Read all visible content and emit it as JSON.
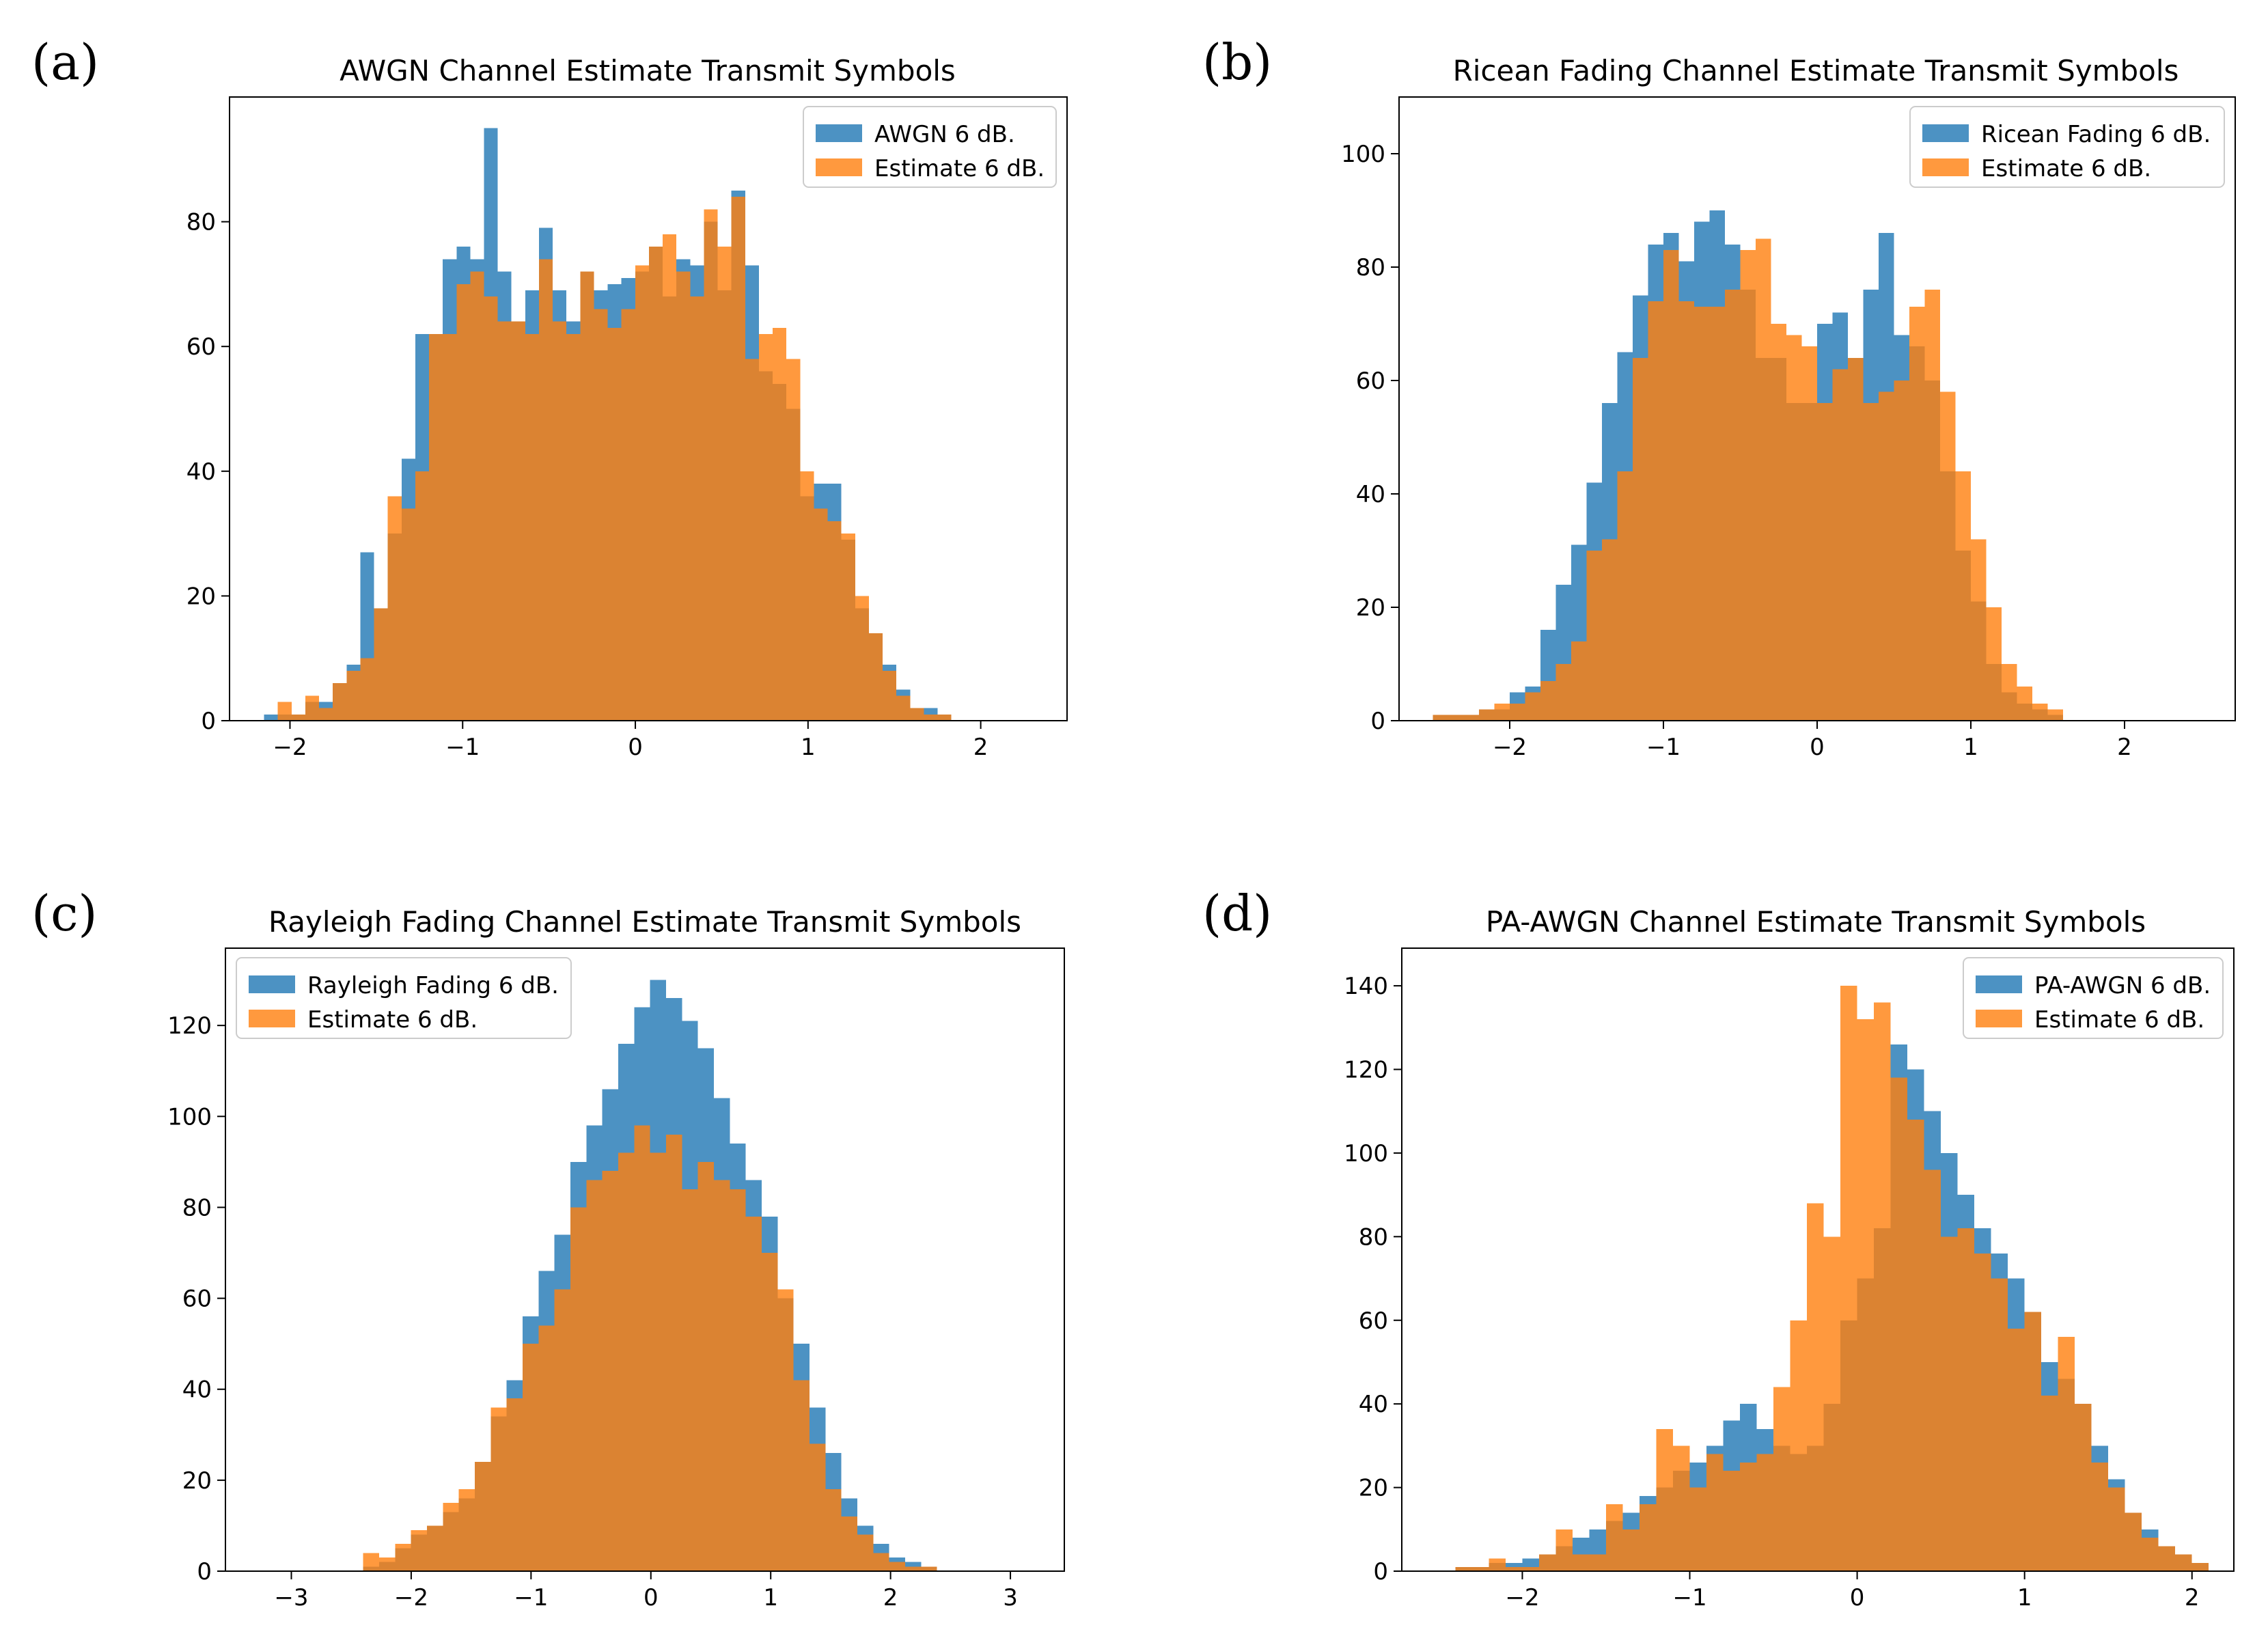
{
  "colors": {
    "blue": "#1f77b4",
    "orange": "#ff7f0e",
    "bar_alpha": 0.8
  },
  "chart_data": [
    {
      "type": "histogram",
      "panel_label": "(a)",
      "title": "AWGN Channel Estimate Transmit Symbols",
      "xlim": [
        -2.35,
        2.5
      ],
      "ylim": [
        0,
        100
      ],
      "xticks": [
        -2,
        -1,
        0,
        1,
        2
      ],
      "xtick_labels": [
        "−2",
        "−1",
        "0",
        "1",
        "2"
      ],
      "yticks": [
        0,
        20,
        40,
        60,
        80
      ],
      "ytick_labels": [
        "0",
        "20",
        "40",
        "60",
        "80"
      ],
      "legend_position": "upper right",
      "series": [
        {
          "name": "AWGN 6 dB.",
          "color": "blue",
          "bin_start": -2.15,
          "bin_width": 0.0796,
          "values": [
            1,
            1,
            1,
            3,
            3,
            6,
            9,
            27,
            18,
            30,
            42,
            62,
            62,
            74,
            76,
            74,
            95,
            72,
            64,
            69,
            79,
            69,
            64,
            72,
            69,
            70,
            71,
            72,
            76,
            68,
            74,
            73,
            80,
            69,
            85,
            73,
            56,
            54,
            50,
            36,
            38,
            38,
            29,
            18,
            14,
            9,
            5,
            2,
            2,
            1
          ]
        },
        {
          "name": "Estimate 6 dB.",
          "color": "orange",
          "bin_start": -2.15,
          "bin_width": 0.0796,
          "values": [
            0,
            3,
            1,
            4,
            2,
            6,
            8,
            10,
            18,
            36,
            34,
            40,
            62,
            62,
            70,
            72,
            68,
            64,
            64,
            62,
            74,
            64,
            62,
            72,
            66,
            63,
            66,
            73,
            76,
            78,
            72,
            68,
            82,
            76,
            84,
            58,
            62,
            63,
            58,
            40,
            34,
            32,
            30,
            20,
            14,
            8,
            4,
            2,
            1,
            1
          ]
        }
      ]
    },
    {
      "type": "histogram",
      "panel_label": "(b)",
      "title": "Ricean Fading Channel Estimate Transmit Symbols",
      "xlim": [
        -2.72,
        2.72
      ],
      "ylim": [
        0,
        110
      ],
      "xticks": [
        -2,
        -1,
        0,
        1,
        2
      ],
      "xtick_labels": [
        "−2",
        "−1",
        "0",
        "1",
        "2"
      ],
      "yticks": [
        0,
        20,
        40,
        60,
        80,
        100
      ],
      "ytick_labels": [
        "0",
        "20",
        "40",
        "60",
        "80",
        "100"
      ],
      "legend_position": "upper right",
      "series": [
        {
          "name": "Ricean Fading 6 dB.",
          "color": "blue",
          "bin_start": -2.5,
          "bin_width": 0.1,
          "values": [
            1,
            1,
            1,
            2,
            2,
            5,
            6,
            16,
            24,
            31,
            42,
            56,
            65,
            75,
            84,
            86,
            81,
            88,
            90,
            84,
            76,
            64,
            64,
            56,
            56,
            70,
            72,
            64,
            76,
            86,
            68,
            66,
            60,
            44,
            30,
            21,
            10,
            5,
            3,
            2,
            1
          ]
        },
        {
          "name": "Estimate 6 dB.",
          "color": "orange",
          "bin_start": -2.5,
          "bin_width": 0.1,
          "values": [
            1,
            1,
            1,
            2,
            3,
            3,
            5,
            7,
            10,
            14,
            30,
            32,
            44,
            64,
            74,
            83,
            74,
            73,
            73,
            76,
            83,
            85,
            70,
            68,
            66,
            56,
            62,
            64,
            56,
            58,
            60,
            73,
            76,
            58,
            44,
            32,
            20,
            10,
            6,
            3,
            2
          ]
        }
      ]
    },
    {
      "type": "histogram",
      "panel_label": "(c)",
      "title": "Rayleigh Fading Channel Estimate Transmit Symbols",
      "xlim": [
        -3.55,
        3.45
      ],
      "ylim": [
        0,
        137
      ],
      "xticks": [
        -3,
        -2,
        -1,
        0,
        1,
        2,
        3
      ],
      "xtick_labels": [
        "−3",
        "−2",
        "−1",
        "0",
        "1",
        "2",
        "3"
      ],
      "yticks": [
        0,
        20,
        40,
        60,
        80,
        100,
        120
      ],
      "ytick_labels": [
        "0",
        "20",
        "40",
        "60",
        "80",
        "100",
        "120"
      ],
      "legend_position": "upper left",
      "series": [
        {
          "name": "Rayleigh Fading 6 dB.",
          "color": "blue",
          "bin_start": -2.4,
          "bin_width": 0.133,
          "values": [
            1,
            2,
            5,
            8,
            10,
            13,
            16,
            24,
            34,
            42,
            56,
            66,
            74,
            90,
            98,
            106,
            116,
            124,
            130,
            126,
            121,
            115,
            104,
            94,
            86,
            78,
            60,
            50,
            36,
            26,
            16,
            10,
            6,
            3,
            2,
            1
          ]
        },
        {
          "name": "Estimate 6 dB.",
          "color": "orange",
          "bin_start": -2.4,
          "bin_width": 0.133,
          "values": [
            4,
            3,
            6,
            9,
            10,
            15,
            18,
            24,
            36,
            38,
            50,
            54,
            62,
            80,
            86,
            88,
            92,
            98,
            92,
            96,
            84,
            90,
            86,
            84,
            78,
            70,
            62,
            42,
            28,
            18,
            12,
            8,
            4,
            2,
            1,
            1
          ]
        }
      ]
    },
    {
      "type": "histogram",
      "panel_label": "(d)",
      "title": "PA-AWGN Channel Estimate Transmit Symbols",
      "xlim": [
        -2.72,
        2.25
      ],
      "ylim": [
        0,
        149
      ],
      "xticks": [
        -2,
        -1,
        0,
        1,
        2
      ],
      "xtick_labels": [
        "−2",
        "−1",
        "0",
        "1",
        "2"
      ],
      "yticks": [
        0,
        20,
        40,
        60,
        80,
        100,
        120,
        140
      ],
      "ytick_labels": [
        "0",
        "20",
        "40",
        "60",
        "80",
        "100",
        "120",
        "140"
      ],
      "legend_position": "upper right",
      "series": [
        {
          "name": "PA-AWGN 6 dB.",
          "color": "blue",
          "bin_start": -2.4,
          "bin_width": 0.1,
          "values": [
            1,
            1,
            2,
            2,
            3,
            4,
            6,
            8,
            10,
            12,
            14,
            18,
            20,
            24,
            26,
            30,
            36,
            40,
            34,
            30,
            28,
            30,
            40,
            60,
            70,
            82,
            126,
            120,
            110,
            100,
            90,
            82,
            76,
            70,
            62,
            50,
            46,
            40,
            30,
            22,
            14,
            10,
            6,
            4,
            2
          ]
        },
        {
          "name": "Estimate 6 dB.",
          "color": "orange",
          "bin_start": -2.4,
          "bin_width": 0.1,
          "values": [
            1,
            1,
            3,
            1,
            1,
            4,
            10,
            4,
            4,
            16,
            10,
            16,
            34,
            30,
            20,
            28,
            24,
            26,
            28,
            44,
            60,
            88,
            80,
            140,
            132,
            136,
            118,
            108,
            96,
            80,
            82,
            76,
            70,
            58,
            62,
            42,
            56,
            40,
            26,
            20,
            14,
            8,
            6,
            4,
            2
          ]
        }
      ]
    }
  ]
}
